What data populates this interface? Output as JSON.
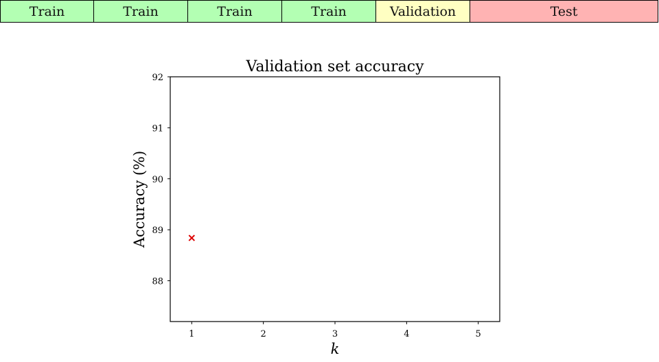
{
  "split_bar": {
    "segments": [
      {
        "label": "Train",
        "color": "#b3ffb3",
        "weight": 1
      },
      {
        "label": "Train",
        "color": "#b3ffb3",
        "weight": 1
      },
      {
        "label": "Train",
        "color": "#b3ffb3",
        "weight": 1
      },
      {
        "label": "Train",
        "color": "#b3ffb3",
        "weight": 1
      },
      {
        "label": "Validation",
        "color": "#ffffc2",
        "weight": 1
      },
      {
        "label": "Test",
        "color": "#ffb3b3",
        "weight": 2
      }
    ]
  },
  "chart_data": {
    "type": "scatter",
    "title": "Validation set accuracy",
    "xlabel": "k",
    "ylabel": "Accuracy (%)",
    "xlim": [
      0.7,
      5.3
    ],
    "ylim": [
      87.2,
      92
    ],
    "xticks": [
      1,
      2,
      3,
      4,
      5
    ],
    "yticks": [
      88,
      89,
      90,
      91,
      92
    ],
    "grid": false,
    "marker": "x",
    "marker_color": "#dd0000",
    "series": [
      {
        "x": [
          1
        ],
        "y": [
          88.84
        ]
      }
    ]
  }
}
